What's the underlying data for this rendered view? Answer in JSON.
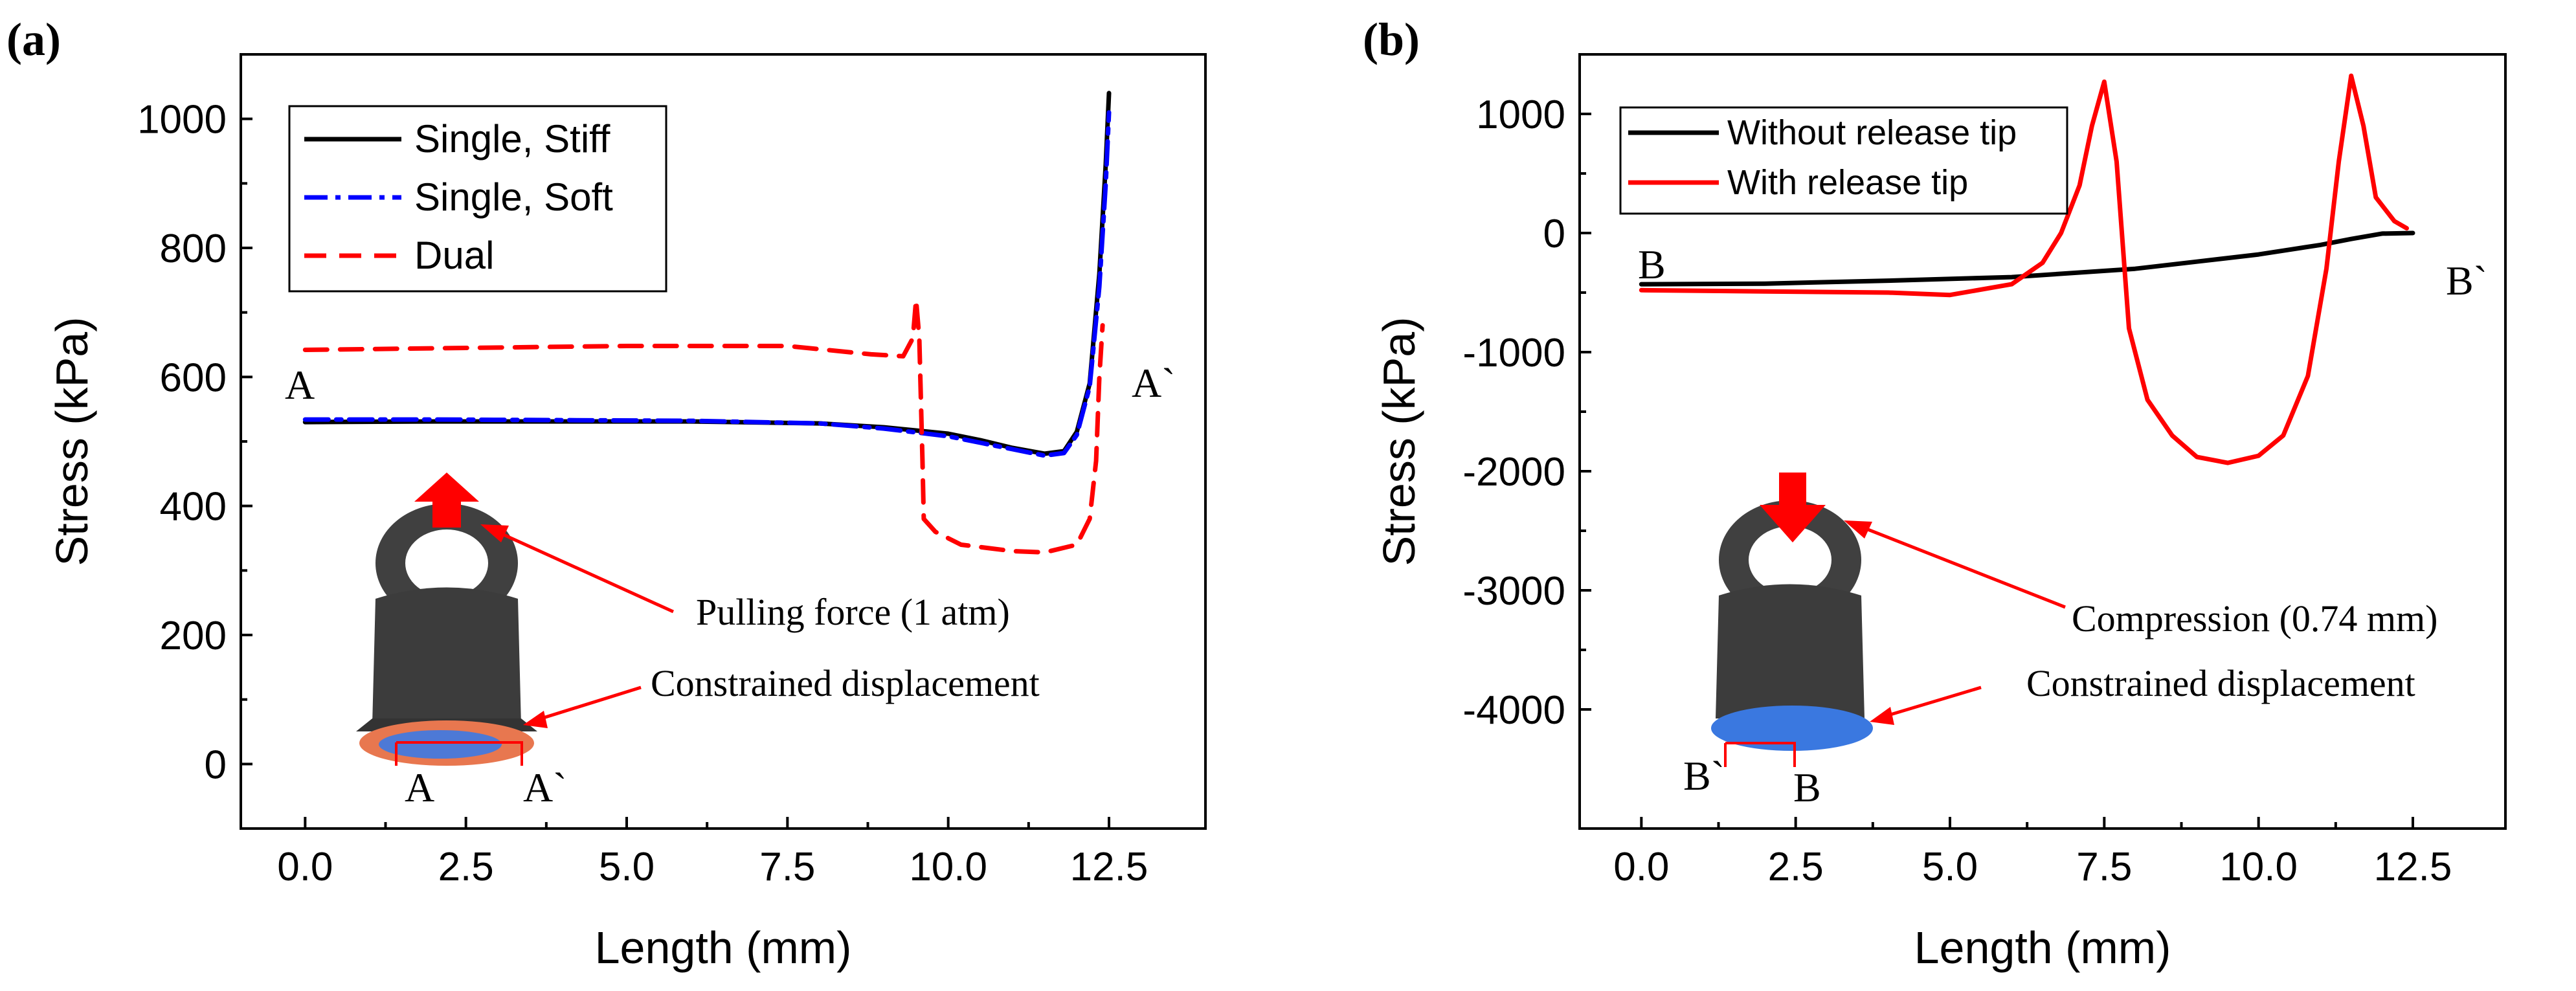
{
  "chart_data": [
    {
      "panel_label": "(a)",
      "type": "line",
      "xlabel": "Length (mm)",
      "ylabel": "Stress (kPa)",
      "xlim": [
        -1.0,
        14.0
      ],
      "ylim": [
        -100,
        1100
      ],
      "xticks": [
        0.0,
        2.5,
        5.0,
        7.5,
        10.0,
        12.5
      ],
      "xtick_labels": [
        "0.0",
        "2.5",
        "5.0",
        "7.5",
        "10.0",
        "12.5"
      ],
      "yticks": [
        0,
        200,
        400,
        600,
        800,
        1000
      ],
      "ytick_labels": [
        "0",
        "200",
        "400",
        "600",
        "800",
        "1000"
      ],
      "legend": [
        "Single, Stiff",
        "Single, Soft",
        "Dual"
      ],
      "series": [
        {
          "name": "Single, Stiff",
          "color": "#000000",
          "dash": "solid",
          "x": [
            0,
            2,
            4,
            6,
            8,
            9,
            10,
            10.5,
            11,
            11.5,
            11.8,
            12.0,
            12.2,
            12.35,
            12.45,
            12.5
          ],
          "y": [
            530,
            531,
            531,
            531,
            528,
            522,
            512,
            502,
            490,
            481,
            485,
            515,
            590,
            760,
            930,
            1040
          ]
        },
        {
          "name": "Single, Soft",
          "color": "#0000ff",
          "dash": "dashdot",
          "x": [
            0,
            2,
            4,
            6,
            8,
            9,
            10,
            10.5,
            11,
            11.5,
            11.8,
            12.0,
            12.2,
            12.35,
            12.45,
            12.5
          ],
          "y": [
            534,
            534,
            533,
            532,
            528,
            520,
            508,
            498,
            488,
            478,
            482,
            510,
            585,
            740,
            900,
            1010
          ]
        },
        {
          "name": "Dual",
          "color": "#ff0000",
          "dash": "dashed",
          "x": [
            0,
            2.5,
            5,
            7.5,
            8.8,
            9.3,
            9.45,
            9.5,
            9.55,
            9.6,
            9.62,
            9.8,
            10.2,
            11.0,
            11.5,
            12.0,
            12.2,
            12.3,
            12.35,
            12.4
          ],
          "y": [
            642,
            645,
            648,
            648,
            635,
            632,
            660,
            720,
            660,
            470,
            380,
            360,
            340,
            330,
            328,
            340,
            380,
            470,
            600,
            680
          ]
        }
      ],
      "annotations": {
        "start_label": "A",
        "end_label": "A`",
        "force_text": "Pulling force (1 atm)",
        "constraint_text": "Constrained displacement",
        "cut_start_label": "A",
        "cut_end_label": "A`"
      }
    },
    {
      "panel_label": "(b)",
      "type": "line",
      "xlabel": "Length (mm)",
      "ylabel": "Stress (kPa)",
      "xlim": [
        -1.0,
        14.0
      ],
      "ylim": [
        -5000,
        1500
      ],
      "xticks": [
        0.0,
        2.5,
        5.0,
        7.5,
        10.0,
        12.5
      ],
      "xtick_labels": [
        "0.0",
        "2.5",
        "5.0",
        "7.5",
        "10.0",
        "12.5"
      ],
      "yticks": [
        -4000,
        -3000,
        -2000,
        -1000,
        0,
        1000
      ],
      "ytick_labels": [
        "-4000",
        "-3000",
        "-2000",
        "-1000",
        "0",
        "1000"
      ],
      "legend": [
        "Without release tip",
        "With release tip"
      ],
      "series": [
        {
          "name": "Without release tip",
          "color": "#000000",
          "dash": "solid",
          "x": [
            0,
            2,
            4,
            6,
            8,
            9,
            10,
            11,
            11.5,
            12,
            12.5
          ],
          "y": [
            -430,
            -425,
            -400,
            -370,
            -300,
            -240,
            -180,
            -100,
            -50,
            -5,
            0
          ]
        },
        {
          "name": "With release tip",
          "color": "#ff0000",
          "dash": "solid",
          "x": [
            0,
            2,
            4,
            5,
            6,
            6.5,
            6.8,
            7.1,
            7.3,
            7.5,
            7.7,
            7.9,
            8.2,
            8.6,
            9.0,
            9.5,
            10.0,
            10.4,
            10.8,
            11.1,
            11.3,
            11.5,
            11.7,
            11.9,
            12.2,
            12.4
          ],
          "y": [
            -480,
            -490,
            -500,
            -520,
            -430,
            -250,
            0,
            400,
            900,
            1270,
            600,
            -800,
            -1400,
            -1700,
            -1880,
            -1930,
            -1870,
            -1700,
            -1200,
            -300,
            600,
            1320,
            900,
            300,
            100,
            40
          ]
        }
      ],
      "annotations": {
        "start_label": "B",
        "end_label": "B`",
        "force_text": "Compression (0.74 mm)",
        "constraint_text": "Constrained displacement",
        "cut_start_label": "B`",
        "cut_end_label": "B"
      }
    }
  ]
}
